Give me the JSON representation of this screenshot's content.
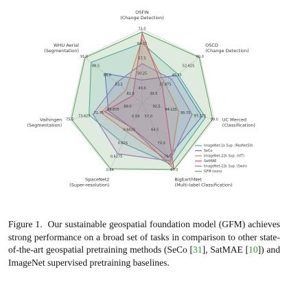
{
  "chart_data": {
    "type": "radar",
    "axes": [
      {
        "name": "OSFIN",
        "task": "(Change Detection)",
        "lim": [
          35.75,
          72
        ],
        "ticks": [
          {
            "value": 43,
            "label": "43.0"
          },
          50.25,
          57.5,
          64.75,
          {
            "value": 72,
            "label": "72.0"
          }
        ]
      },
      {
        "name": "OSCD",
        "task": "(Change Detection)",
        "lim": [
          23.125,
          60
        ],
        "ticks": [
          30.5,
          37.875,
          45.25,
          52.625,
          {
            "value": 60,
            "label": "60.0"
          }
        ]
      },
      {
        "name": "UC Merced",
        "task": "(Classification)",
        "lim": [
          90.875,
          99
        ],
        "ticks": [
          92.5,
          94.125,
          95.75,
          97.375,
          {
            "value": 99,
            "label": "99.0"
          }
        ]
      },
      {
        "name": "BigEarthNet",
        "task": "(Multi-label Classification)",
        "lim": [
          49.5,
          87
        ],
        "ticks": [
          {
            "value": 57,
            "label": "57.0"
          },
          64.5,
          {
            "value": 72,
            "label": "72.0"
          },
          79.5,
          {
            "value": 87,
            "label": "87.0"
          }
        ]
      },
      {
        "name": "SpaceNet2",
        "task": "(Super-resolution)",
        "lim": [
          0.5775,
          0.64
        ],
        "ticks": [
          0.59,
          0.6025,
          0.615,
          0.6275,
          0.64
        ]
      },
      {
        "name": "Vaihingen",
        "task": "(Segmentation)",
        "lim": [
          66.125,
          75.5
        ],
        "ticks": [
          {
            "value": 68,
            "label": "68.0"
          },
          69.875,
          71.75,
          73.625,
          75.5
        ]
      },
      {
        "name": "WHU Aerial",
        "task": "(Segmentation)",
        "lim": [
          78.5,
          91
        ],
        "ticks": [
          {
            "value": 81,
            "label": "81.0"
          },
          83.5,
          {
            "value": 86,
            "label": "86.0"
          },
          88.5,
          {
            "value": 91,
            "label": "91.0"
          }
        ]
      }
    ],
    "series": [
      {
        "name": "ImageNet-1k Sup. (ResNet50)",
        "color": "#4aa8a0",
        "values": [
          65,
          46,
          98.0,
          84,
          0.615,
          73.0,
          89.5
        ]
      },
      {
        "name": "SeCo",
        "color": "#5b6fd6",
        "values": [
          47,
          45,
          97.6,
          80,
          0.6,
          70.5,
          86.5
        ]
      },
      {
        "name": "ImageNet-22k Sup. (ViT)",
        "color": "#e08050",
        "values": [
          67,
          38,
          95.0,
          83,
          0.605,
          71.5,
          82.0
        ]
      },
      {
        "name": "SatMAE",
        "color": "#d0507a",
        "values": [
          70,
          36,
          93.5,
          86.5,
          0.6,
          71,
          80.5
        ]
      },
      {
        "name": "ImageNet-22k Sup. (Swin)",
        "color": "#9a70c0",
        "values": [
          55,
          42,
          96.5,
          82,
          0.625,
          72.5,
          84.0
        ]
      },
      {
        "name": "GFM (ours)",
        "color": "#5aa85a",
        "values": [
          70.5,
          59.5,
          98.8,
          86.8,
          0.639,
          75.3,
          90.8
        ]
      }
    ],
    "legend": "lower right",
    "grid": true
  },
  "caption": {
    "label": "Figure 1.",
    "segments": [
      {
        "text": "Our sustainable geospatial foundation model (GFM) achieves strong performance on a broad set of tasks in comparison to other state-of-the-art geospatial pretraining methods (SeCo ["
      },
      {
        "text": "31",
        "color": "#22a022"
      },
      {
        "text": "], SatMAE ["
      },
      {
        "text": "10",
        "color": "#22a022"
      },
      {
        "text": "]) and ImageNet supervised pretraining baselines."
      }
    ]
  }
}
